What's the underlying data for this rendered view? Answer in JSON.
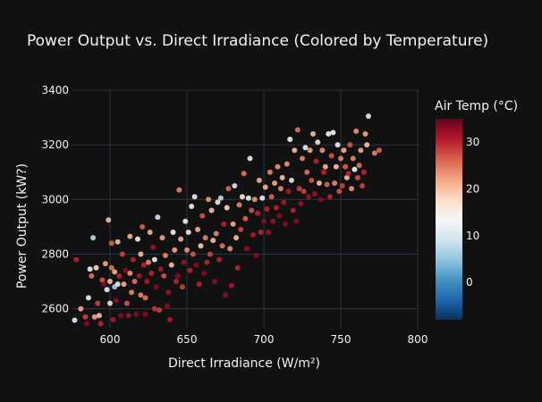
{
  "chart_data": {
    "type": "scatter",
    "title": "Power Output vs. Direct Irradiance (Colored by Temperature)",
    "xlabel": "Direct Irradiance (W/m²)",
    "ylabel": "Power Output (kW?)",
    "xlim": [
      575,
      800
    ],
    "ylim": [
      2530,
      3400
    ],
    "x_ticks": [
      600,
      650,
      700,
      750,
      800
    ],
    "y_ticks": [
      2600,
      2800,
      3000,
      3200,
      3400
    ],
    "grid": true,
    "colorbar": {
      "title": "Air Temp (°C)",
      "range": [
        -8,
        35
      ],
      "ticks": [
        0,
        10,
        20,
        30
      ],
      "colorscale": "RdBu reversed"
    },
    "points": [
      [
        577,
        2558,
        12
      ],
      [
        578,
        2780,
        30
      ],
      [
        581,
        2600,
        22
      ],
      [
        584,
        2570,
        28
      ],
      [
        585,
        2545,
        33
      ],
      [
        586,
        2640,
        12
      ],
      [
        587,
        2745,
        12
      ],
      [
        588,
        2720,
        25
      ],
      [
        589,
        2860,
        8
      ],
      [
        590,
        2570,
        22
      ],
      [
        591,
        2750,
        18
      ],
      [
        592,
        2620,
        28
      ],
      [
        593,
        2575,
        20
      ],
      [
        594,
        2545,
        30
      ],
      [
        595,
        2705,
        27
      ],
      [
        596,
        2690,
        33
      ],
      [
        597,
        2765,
        22
      ],
      [
        598,
        2670,
        12
      ],
      [
        599,
        2925,
        20
      ],
      [
        600,
        2620,
        10
      ],
      [
        600,
        2700,
        20
      ],
      [
        601,
        2750,
        25
      ],
      [
        601,
        2840,
        26
      ],
      [
        602,
        2560,
        31
      ],
      [
        603,
        2735,
        21
      ],
      [
        603,
        2680,
        6
      ],
      [
        604,
        2630,
        33
      ],
      [
        605,
        2690,
        12
      ],
      [
        605,
        2845,
        20
      ],
      [
        606,
        2720,
        30
      ],
      [
        607,
        2575,
        33
      ],
      [
        608,
        2800,
        28
      ],
      [
        609,
        2690,
        21
      ],
      [
        610,
        2740,
        33
      ],
      [
        611,
        2620,
        27
      ],
      [
        612,
        2575,
        32
      ],
      [
        613,
        2730,
        23
      ],
      [
        613,
        2865,
        21
      ],
      [
        614,
        2660,
        24
      ],
      [
        615,
        2780,
        30
      ],
      [
        616,
        2700,
        25
      ],
      [
        617,
        2580,
        33
      ],
      [
        618,
        2855,
        15
      ],
      [
        619,
        2720,
        31
      ],
      [
        620,
        2650,
        24
      ],
      [
        620,
        2800,
        20
      ],
      [
        621,
        2900,
        26
      ],
      [
        622,
        2760,
        30
      ],
      [
        623,
        2580,
        33
      ],
      [
        623,
        2640,
        25
      ],
      [
        624,
        2700,
        31
      ],
      [
        625,
        2770,
        24
      ],
      [
        626,
        2880,
        21
      ],
      [
        627,
        2730,
        30
      ],
      [
        628,
        2825,
        32
      ],
      [
        629,
        2600,
        29
      ],
      [
        629,
        2780,
        12
      ],
      [
        630,
        2680,
        33
      ],
      [
        631,
        2935,
        10
      ],
      [
        632,
        2595,
        28
      ],
      [
        633,
        2745,
        31
      ],
      [
        634,
        2860,
        22
      ],
      [
        635,
        2720,
        27
      ],
      [
        636,
        2795,
        24
      ],
      [
        637,
        2610,
        33
      ],
      [
        638,
        2660,
        32
      ],
      [
        639,
        2560,
        31
      ],
      [
        640,
        2760,
        20
      ],
      [
        641,
        2880,
        14
      ],
      [
        642,
        2815,
        22
      ],
      [
        643,
        2700,
        30
      ],
      [
        644,
        2720,
        33
      ],
      [
        645,
        3035,
        24
      ],
      [
        646,
        2855,
        21
      ],
      [
        647,
        2680,
        28
      ],
      [
        648,
        2770,
        32
      ],
      [
        649,
        2920,
        12
      ],
      [
        650,
        2815,
        23
      ],
      [
        651,
        2880,
        16
      ],
      [
        652,
        2740,
        30
      ],
      [
        653,
        2975,
        12
      ],
      [
        654,
        2800,
        27
      ],
      [
        655,
        3010,
        12
      ],
      [
        656,
        2760,
        33
      ],
      [
        657,
        2890,
        21
      ],
      [
        658,
        2690,
        30
      ],
      [
        659,
        2830,
        19
      ],
      [
        660,
        2940,
        27
      ],
      [
        661,
        2730,
        33
      ],
      [
        662,
        2860,
        24
      ],
      [
        663,
        2770,
        30
      ],
      [
        664,
        3000,
        23
      ],
      [
        665,
        2800,
        28
      ],
      [
        666,
        2960,
        20
      ],
      [
        667,
        2850,
        20
      ],
      [
        668,
        2700,
        33
      ],
      [
        669,
        2875,
        24
      ],
      [
        670,
        2990,
        16
      ],
      [
        671,
        2780,
        30
      ],
      [
        672,
        3005,
        8
      ],
      [
        673,
        2830,
        25
      ],
      [
        674,
        2910,
        30
      ],
      [
        675,
        2650,
        33
      ],
      [
        676,
        2970,
        18
      ],
      [
        677,
        3040,
        26
      ],
      [
        678,
        2820,
        23
      ],
      [
        679,
        2685,
        31
      ],
      [
        680,
        2910,
        21
      ],
      [
        681,
        3050,
        10
      ],
      [
        682,
        2860,
        20
      ],
      [
        683,
        2750,
        30
      ],
      [
        684,
        2980,
        24
      ],
      [
        685,
        2890,
        28
      ],
      [
        686,
        3010,
        16
      ],
      [
        687,
        3095,
        25
      ],
      [
        688,
        2930,
        26
      ],
      [
        689,
        2820,
        32
      ],
      [
        690,
        3005,
        12
      ],
      [
        691,
        3150,
        12
      ],
      [
        692,
        2960,
        27
      ],
      [
        693,
        2870,
        31
      ],
      [
        694,
        3000,
        23
      ],
      [
        695,
        2795,
        33
      ],
      [
        696,
        2950,
        30
      ],
      [
        697,
        3070,
        21
      ],
      [
        698,
        2880,
        30
      ],
      [
        699,
        3005,
        12
      ],
      [
        700,
        2920,
        33
      ],
      [
        701,
        3045,
        21
      ],
      [
        702,
        2965,
        30
      ],
      [
        703,
        2880,
        32
      ],
      [
        704,
        3100,
        24
      ],
      [
        705,
        3010,
        26
      ],
      [
        706,
        2920,
        32
      ],
      [
        707,
        3060,
        22
      ],
      [
        708,
        2970,
        30
      ],
      [
        709,
        3120,
        23
      ],
      [
        710,
        2940,
        33
      ],
      [
        711,
        3040,
        24
      ],
      [
        712,
        3080,
        20
      ],
      [
        713,
        2990,
        31
      ],
      [
        714,
        2910,
        33
      ],
      [
        715,
        3130,
        23
      ],
      [
        716,
        3030,
        31
      ],
      [
        717,
        3220,
        14
      ],
      [
        718,
        3070,
        10
      ],
      [
        719,
        2960,
        30
      ],
      [
        720,
        3180,
        20
      ],
      [
        721,
        2920,
        33
      ],
      [
        722,
        3255,
        25
      ],
      [
        723,
        3040,
        28
      ],
      [
        724,
        2985,
        32
      ],
      [
        725,
        3150,
        24
      ],
      [
        726,
        3030,
        28
      ],
      [
        727,
        3190,
        12
      ],
      [
        728,
        3100,
        25
      ],
      [
        729,
        3010,
        32
      ],
      [
        730,
        3180,
        22
      ],
      [
        731,
        3070,
        27
      ],
      [
        732,
        3240,
        20
      ],
      [
        733,
        3020,
        32
      ],
      [
        734,
        3140,
        30
      ],
      [
        735,
        3210,
        18
      ],
      [
        736,
        3060,
        20
      ],
      [
        737,
        3000,
        33
      ],
      [
        738,
        3180,
        23
      ],
      [
        739,
        3100,
        30
      ],
      [
        740,
        3120,
        21
      ],
      [
        741,
        3055,
        26
      ],
      [
        742,
        3240,
        14
      ],
      [
        743,
        3010,
        30
      ],
      [
        744,
        3160,
        27
      ],
      [
        745,
        3245,
        13
      ],
      [
        746,
        3060,
        24
      ],
      [
        747,
        3120,
        20
      ],
      [
        748,
        3200,
        12
      ],
      [
        749,
        3030,
        27
      ],
      [
        750,
        3150,
        24
      ],
      [
        751,
        3050,
        28
      ],
      [
        752,
        3180,
        21
      ],
      [
        753,
        3120,
        26
      ],
      [
        754,
        3080,
        20
      ],
      [
        755,
        3095,
        30
      ],
      [
        756,
        3200,
        27
      ],
      [
        757,
        3040,
        23
      ],
      [
        758,
        3150,
        24
      ],
      [
        759,
        3110,
        13
      ],
      [
        760,
        3250,
        23
      ],
      [
        761,
        3080,
        27
      ],
      [
        762,
        3125,
        25
      ],
      [
        763,
        3180,
        22
      ],
      [
        764,
        3050,
        28
      ],
      [
        765,
        3100,
        30
      ],
      [
        766,
        3240,
        22
      ],
      [
        767,
        3200,
        20
      ],
      [
        768,
        3305,
        16
      ],
      [
        772,
        3170,
        24
      ],
      [
        775,
        3180,
        26
      ]
    ]
  }
}
